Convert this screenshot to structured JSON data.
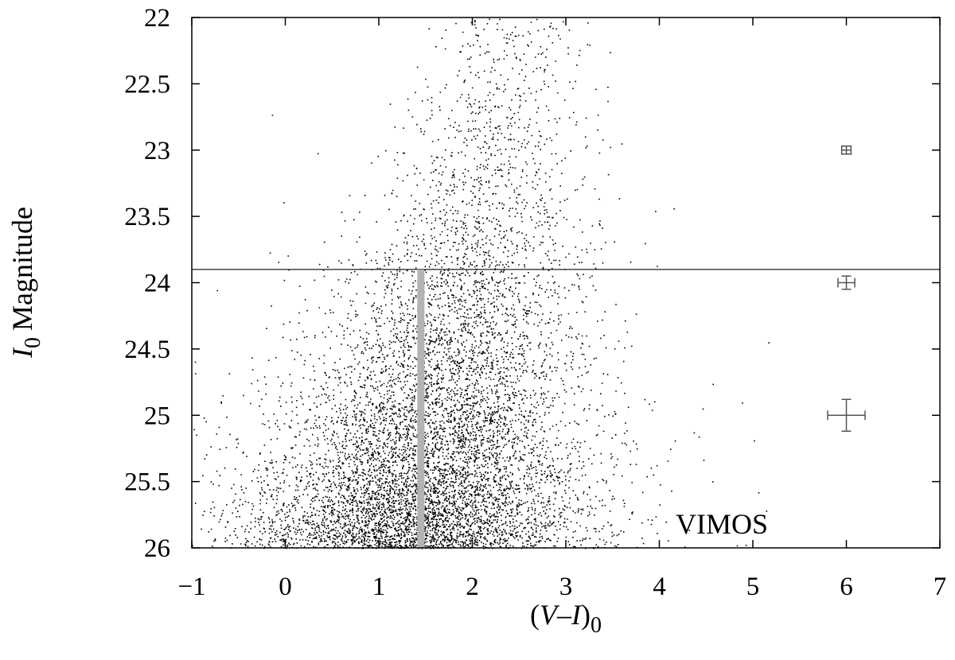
{
  "chart_data": {
    "type": "scatter",
    "title": "",
    "xlabel": {
      "prefix": "(",
      "v": "V",
      "dash": "–",
      "i": "I",
      "close": ")",
      "sub": "0"
    },
    "ylabel": {
      "i": "I",
      "sub": "0",
      "rest": "Magnitude"
    },
    "xlim": [
      -1,
      7
    ],
    "ylim": [
      22,
      26
    ],
    "y_inverted": true,
    "grid": false,
    "x_ticks": [
      {
        "value": -1,
        "label": "−1"
      },
      {
        "value": 0,
        "label": "0"
      },
      {
        "value": 1,
        "label": "1"
      },
      {
        "value": 2,
        "label": "2"
      },
      {
        "value": 3,
        "label": "3"
      },
      {
        "value": 4,
        "label": "4"
      },
      {
        "value": 5,
        "label": "5"
      },
      {
        "value": 6,
        "label": "6"
      },
      {
        "value": 7,
        "label": "7"
      }
    ],
    "y_ticks": [
      {
        "value": 22,
        "label": "22"
      },
      {
        "value": 22.5,
        "label": "22.5"
      },
      {
        "value": 23,
        "label": "23"
      },
      {
        "value": 23.5,
        "label": "23.5"
      },
      {
        "value": 24,
        "label": "24"
      },
      {
        "value": 24.5,
        "label": "24.5"
      },
      {
        "value": 25,
        "label": "25"
      },
      {
        "value": 25.5,
        "label": "25.5"
      },
      {
        "value": 26,
        "label": "26"
      }
    ],
    "annotation": "VIMOS",
    "reference_lines": [
      {
        "type": "horizontal",
        "y": 23.9,
        "color": "#333333"
      },
      {
        "type": "vertical",
        "x": 1.45,
        "y_from": 23.9,
        "y_to": 26,
        "color": "#b3b3b3"
      }
    ],
    "error_bars": [
      {
        "x": 6.0,
        "y": 23.0,
        "x_err": 0.05,
        "y_err": 0.03
      },
      {
        "x": 6.0,
        "y": 24.0,
        "x_err": 0.09,
        "y_err": 0.05
      },
      {
        "x": 6.0,
        "y": 25.0,
        "x_err": 0.2,
        "y_err": 0.12
      }
    ],
    "point_color": "#000000",
    "error_bar_color": "#555555"
  }
}
